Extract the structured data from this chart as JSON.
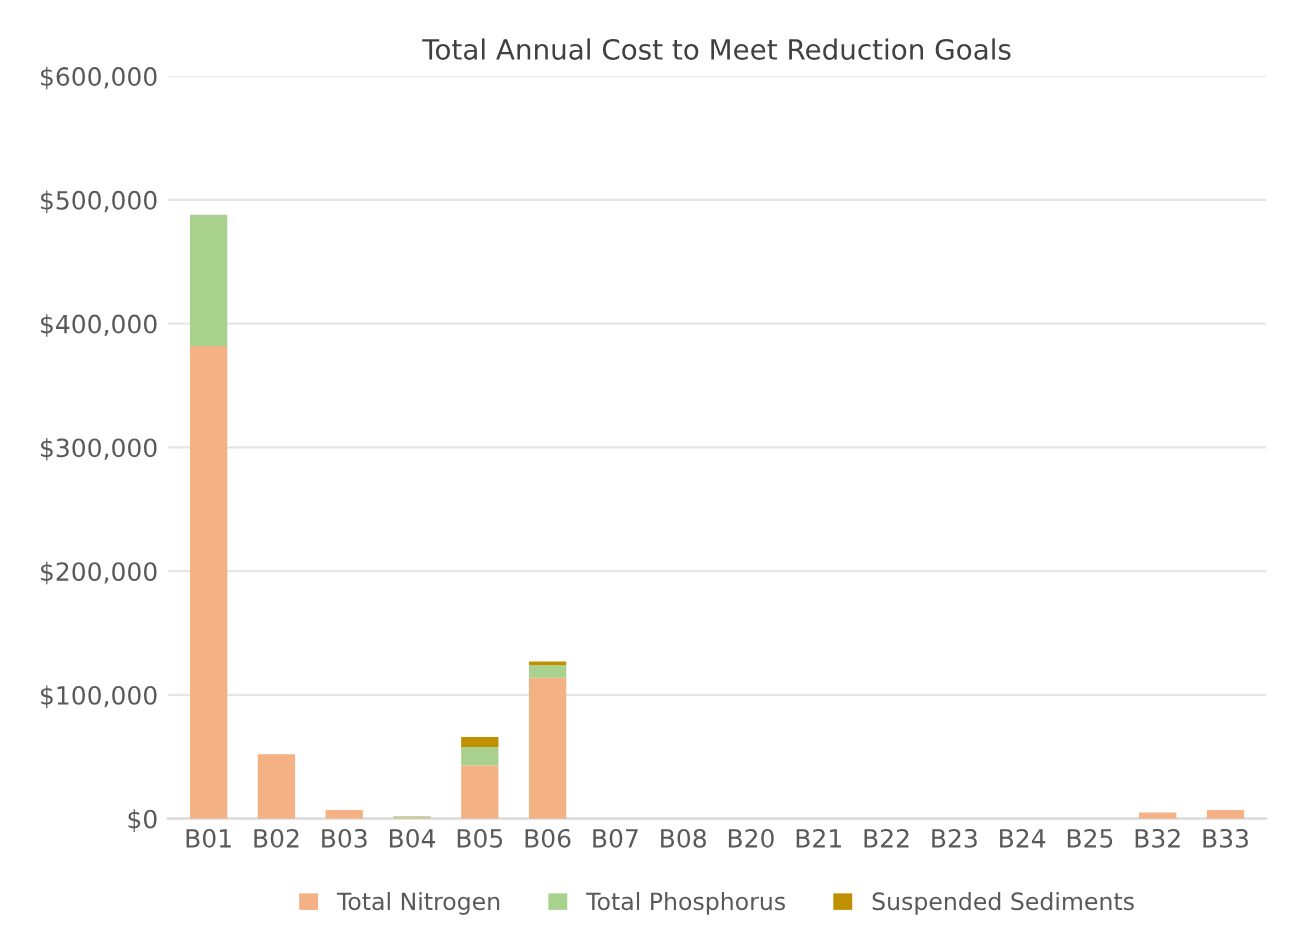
{
  "chart_data": {
    "type": "bar",
    "title": "Total Annual Cost to Meet Reduction Goals",
    "stacked": true,
    "categories": [
      "B01",
      "B02",
      "B03",
      "B04",
      "B05",
      "B06",
      "B07",
      "B08",
      "B20",
      "B21",
      "B22",
      "B23",
      "B24",
      "B25",
      "B32",
      "B33"
    ],
    "series": [
      {
        "name": "Total Nitrogen",
        "color": "#f4b183",
        "values": [
          382000,
          52000,
          7000,
          1000,
          43000,
          114000,
          0,
          0,
          0,
          0,
          0,
          0,
          0,
          0,
          5000,
          7000
        ]
      },
      {
        "name": "Total Phosphorus",
        "color": "#a9d18e",
        "values": [
          106000,
          0,
          0,
          1000,
          15000,
          10000,
          0,
          0,
          0,
          0,
          0,
          0,
          0,
          0,
          0,
          0
        ]
      },
      {
        "name": "Suspended Sediments",
        "color": "#bf9000",
        "values": [
          0,
          0,
          0,
          0,
          8000,
          3000,
          0,
          0,
          0,
          0,
          0,
          0,
          0,
          0,
          0,
          0
        ]
      }
    ],
    "ylim": [
      0,
      600000
    ],
    "yticks": [
      {
        "value": 0,
        "label": "$0"
      },
      {
        "value": 100000,
        "label": "$100,000"
      },
      {
        "value": 200000,
        "label": "$200,000"
      },
      {
        "value": 300000,
        "label": "$300,000"
      },
      {
        "value": 400000,
        "label": "$400,000"
      },
      {
        "value": 500000,
        "label": "$500,000"
      },
      {
        "value": 600000,
        "label": "$600,000"
      }
    ],
    "grid": "y",
    "legend": "bottom"
  }
}
